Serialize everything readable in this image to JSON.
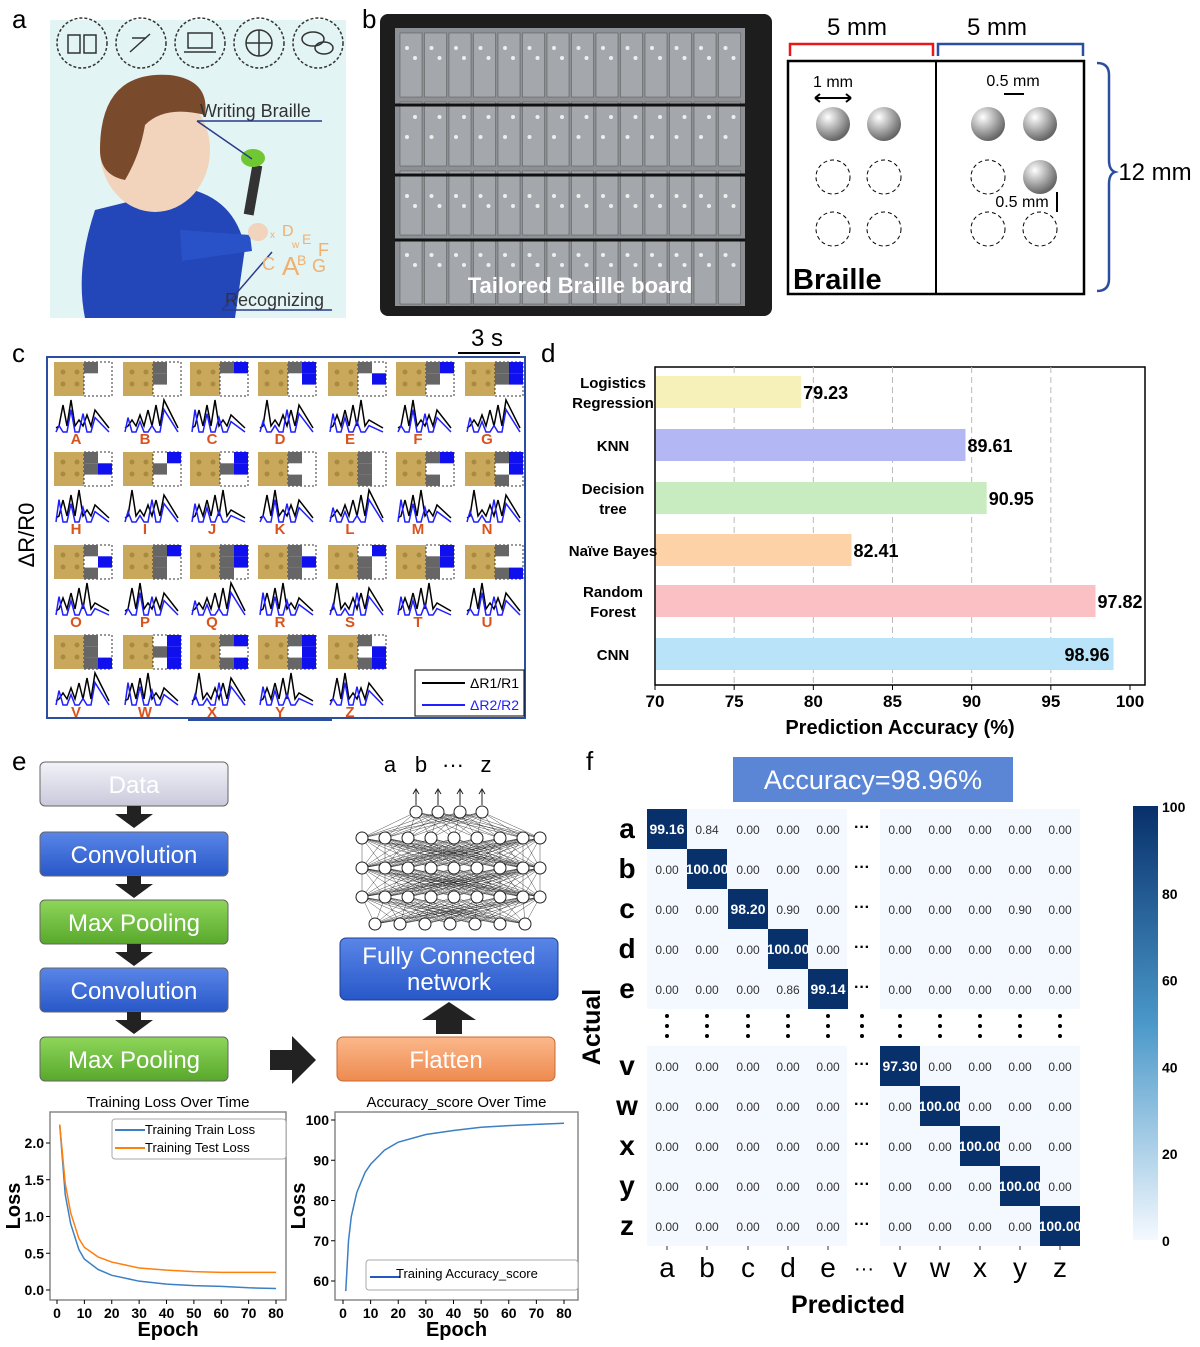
{
  "panels": {
    "a": {
      "label": "a",
      "writing": "Writing Braille",
      "recognizing": "Recognizing",
      "letters": [
        "x",
        "D",
        "w",
        "E",
        "F",
        "C",
        "A",
        "B",
        "G"
      ]
    },
    "b": {
      "label": "b",
      "board_caption": "Tailored Braille board",
      "dim_left": "5 mm",
      "dim_right": "5 mm",
      "dot_diameter": "1 mm",
      "dot_gap": "0.5 mm",
      "dot_height": "0.5 mm",
      "cell_height": "12 mm",
      "diagram_title": "Braille"
    },
    "c": {
      "label": "c",
      "scale": "3 s",
      "ylabel": "ΔR/R0",
      "letters": [
        "A",
        "B",
        "C",
        "D",
        "E",
        "F",
        "G",
        "H",
        "I",
        "J",
        "K",
        "L",
        "M",
        "N",
        "O",
        "P",
        "Q",
        "R",
        "S",
        "T",
        "U",
        "V",
        "W",
        "X",
        "Y",
        "Z"
      ],
      "legend": [
        "ΔR1/R1",
        "ΔR2/R2"
      ],
      "colors": {
        "black": "#000000",
        "blue": "#1f1fff",
        "letter": "#d9531e"
      }
    },
    "d": {
      "label": "d"
    },
    "e": {
      "label": "e",
      "flow": [
        "Data",
        "Convolution",
        "Max Pooling",
        "Convolution",
        "Max Pooling"
      ],
      "flatten": "Flatten",
      "fc": [
        "Fully Connected",
        "network"
      ],
      "outputs": [
        "a",
        "b",
        "···",
        "z"
      ]
    },
    "f": {
      "label": "f",
      "accuracy_banner": "Accuracy=98.96%"
    }
  },
  "chart_data": [
    {
      "id": "d",
      "type": "bar",
      "orientation": "horizontal",
      "categories": [
        "Logistics Regression",
        "KNN",
        "Decision tree",
        "Naïve Bayes",
        "Random Forest",
        "CNN"
      ],
      "values": [
        79.23,
        89.61,
        90.95,
        82.41,
        97.82,
        98.96
      ],
      "value_labels": [
        "79.23",
        "89.61",
        "90.95",
        "82.41",
        "97.82",
        "98.96"
      ],
      "colors": [
        "#f5f1b8",
        "#b3b8f5",
        "#c8ecc0",
        "#fcd2a6",
        "#fbc0c4",
        "#b8e3f8"
      ],
      "xlabel": "Prediction Accuracy (%)",
      "xlim": [
        70,
        100
      ],
      "xticks": [
        "70",
        "75",
        "80",
        "85",
        "90",
        "95",
        "100"
      ],
      "grid": "vertical dashed"
    },
    {
      "id": "loss",
      "type": "line",
      "title": "Training Loss Over Time",
      "xlabel": "Epoch",
      "ylabel": "Loss",
      "xlim": [
        0,
        80
      ],
      "ylim": [
        0,
        2.3
      ],
      "xticks": [
        "0",
        "10",
        "20",
        "30",
        "40",
        "50",
        "60",
        "70",
        "80"
      ],
      "yticks": [
        "0.0",
        "0.5",
        "1.0",
        "1.5",
        "2.0"
      ],
      "legend": "top-right",
      "series": [
        {
          "name": "Training Train Loss",
          "color": "#3b7fc4",
          "x": [
            1,
            3,
            5,
            8,
            10,
            15,
            20,
            30,
            40,
            50,
            60,
            70,
            80
          ],
          "y": [
            2.25,
            1.3,
            0.9,
            0.55,
            0.42,
            0.28,
            0.2,
            0.12,
            0.08,
            0.06,
            0.05,
            0.03,
            0.02
          ]
        },
        {
          "name": "Training Test Loss",
          "color": "#ff7f0e",
          "x": [
            1,
            3,
            5,
            8,
            10,
            15,
            20,
            30,
            40,
            50,
            60,
            70,
            80
          ],
          "y": [
            2.25,
            1.45,
            1.05,
            0.7,
            0.58,
            0.45,
            0.38,
            0.3,
            0.27,
            0.25,
            0.24,
            0.24,
            0.24
          ]
        }
      ]
    },
    {
      "id": "acc",
      "type": "line",
      "title": "Accuracy_score Over Time",
      "xlabel": "Epoch",
      "ylabel": "Loss",
      "xlim": [
        0,
        80
      ],
      "ylim": [
        58,
        100
      ],
      "xticks": [
        "0",
        "10",
        "20",
        "30",
        "40",
        "50",
        "60",
        "70",
        "80"
      ],
      "yticks": [
        "60",
        "70",
        "80",
        "90",
        "100"
      ],
      "legend": "bottom-right",
      "series": [
        {
          "name": "Training Accuracy_score",
          "color": "#3b7fc4",
          "x": [
            1,
            2,
            3,
            5,
            8,
            10,
            15,
            20,
            30,
            40,
            50,
            60,
            70,
            80
          ],
          "y": [
            57.5,
            70,
            76,
            82,
            87,
            89,
            92.5,
            94.5,
            96.4,
            97.4,
            98.2,
            98.6,
            98.9,
            99.2
          ]
        }
      ]
    },
    {
      "id": "f",
      "type": "heatmap",
      "xlabel": "Predicted",
      "ylabel": "Actual",
      "rows": [
        "a",
        "b",
        "c",
        "d",
        "e",
        "v",
        "w",
        "x",
        "y",
        "z"
      ],
      "cols": [
        "a",
        "b",
        "c",
        "d",
        "e",
        "v",
        "w",
        "x",
        "y",
        "z"
      ],
      "ellipsis": "···",
      "values": [
        [
          "99.16",
          "0.84",
          "0.00",
          "0.00",
          "0.00",
          "0.00",
          "0.00",
          "0.00",
          "0.00",
          "0.00"
        ],
        [
          "0.00",
          "100.00",
          "0.00",
          "0.00",
          "0.00",
          "0.00",
          "0.00",
          "0.00",
          "0.00",
          "0.00"
        ],
        [
          "0.00",
          "0.00",
          "98.20",
          "0.90",
          "0.00",
          "0.00",
          "0.00",
          "0.00",
          "0.90",
          "0.00"
        ],
        [
          "0.00",
          "0.00",
          "0.00",
          "100.00",
          "0.00",
          "0.00",
          "0.00",
          "0.00",
          "0.00",
          "0.00"
        ],
        [
          "0.00",
          "0.00",
          "0.00",
          "0.86",
          "99.14",
          "0.00",
          "0.00",
          "0.00",
          "0.00",
          "0.00"
        ],
        [
          "0.00",
          "0.00",
          "0.00",
          "0.00",
          "0.00",
          "97.30",
          "0.00",
          "0.00",
          "0.00",
          "0.00"
        ],
        [
          "0.00",
          "0.00",
          "0.00",
          "0.00",
          "0.00",
          "0.00",
          "100.00",
          "0.00",
          "0.00",
          "0.00"
        ],
        [
          "0.00",
          "0.00",
          "0.00",
          "0.00",
          "0.00",
          "0.00",
          "0.00",
          "100.00",
          "0.00",
          "0.00"
        ],
        [
          "0.00",
          "0.00",
          "0.00",
          "0.00",
          "0.00",
          "0.00",
          "0.00",
          "0.00",
          "100.00",
          "0.00"
        ],
        [
          "0.00",
          "0.00",
          "0.00",
          "0.00",
          "0.00",
          "0.00",
          "0.00",
          "0.00",
          "0.00",
          "100.00"
        ]
      ],
      "colorbar": {
        "range": [
          0,
          100
        ],
        "ticks": [
          "100",
          "80",
          "60",
          "40",
          "20",
          "0"
        ],
        "low": "#f4f9ff",
        "high": "#08306b"
      }
    }
  ]
}
